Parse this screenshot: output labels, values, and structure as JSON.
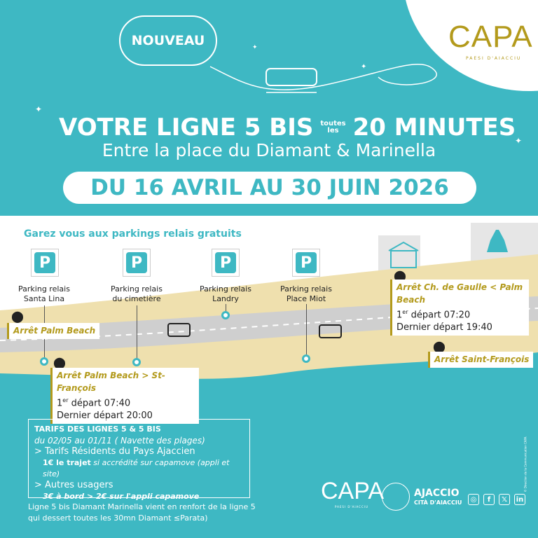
{
  "header": {
    "badge": "NOUVEAU",
    "logo": "CAPA",
    "logo_sub": "PAESI D'AIACCIU",
    "title_main": "VOTRE LIGNE 5 BIS",
    "title_small_1": "toutes",
    "title_small_2": "les",
    "title_freq": "20 MINUTES",
    "subtitle": "Entre la place du Diamant & Marinella",
    "dates": "DU 16 AVRIL AU 30 JUIN 2026"
  },
  "map": {
    "parking_title": "Garez vous aux parkings relais gratuits",
    "parkings": [
      {
        "l1": "Parking relais",
        "l2": "Santa Lina"
      },
      {
        "l1": "Parking relais",
        "l2": "du cimetière"
      },
      {
        "l1": "Parking relais",
        "l2": "Landry"
      },
      {
        "l1": "Parking relais",
        "l2": "Place Miot"
      }
    ],
    "stops": [
      {
        "name": "Arrêt Palm Beach"
      },
      {
        "name": "Arrêt Palm Beach > St-François",
        "first": "1er départ 07:40",
        "first_sup": "er",
        "first_a": "1",
        "first_b": " départ 07:40",
        "last": "Dernier départ 20:00"
      },
      {
        "name": "Arrêt Ch. de Gaulle < Palm Beach",
        "first_a": "1",
        "first_sup": "er",
        "first_b": " départ 07:20",
        "last": "Dernier départ 19:40"
      },
      {
        "name": "Arrêt Saint-François"
      }
    ]
  },
  "tarifs": {
    "title": "TARIFS DES LIGNES 5 & 5 BIS",
    "period": "du 02/05 au 01/11 ( Navette des plages)",
    "res_title": "> Tarifs Résidents du Pays Ajaccien",
    "res_price": "1€ le trajet",
    "res_cond": "si accrédité sur capamove (appli et site)",
    "other_title": "> Autres usagers",
    "other_price": "3€ à bord > 2€ sur l'appli capamove"
  },
  "note": {
    "l1": "Ligne 5 bis Diamant Marinella vient en renfort de la ligne 5",
    "l2": "qui dessert toutes les 30mn Diamant ≤Parata)"
  },
  "footer": {
    "logo": "CAPA",
    "logo_sub": "PAESI D'AIACCIU",
    "city": "AJACCIO",
    "city_sub": "CITÀ D'AIACCIU",
    "socials": [
      "instagram-icon",
      "facebook-icon",
      "x-icon",
      "linkedin-icon"
    ],
    "copyright": "© Direction de la Communication CAPA"
  },
  "colors": {
    "teal": "#3eb8c3",
    "gold": "#b39a1c",
    "sand": "#efe0ae",
    "road": "#cfcfcf"
  }
}
